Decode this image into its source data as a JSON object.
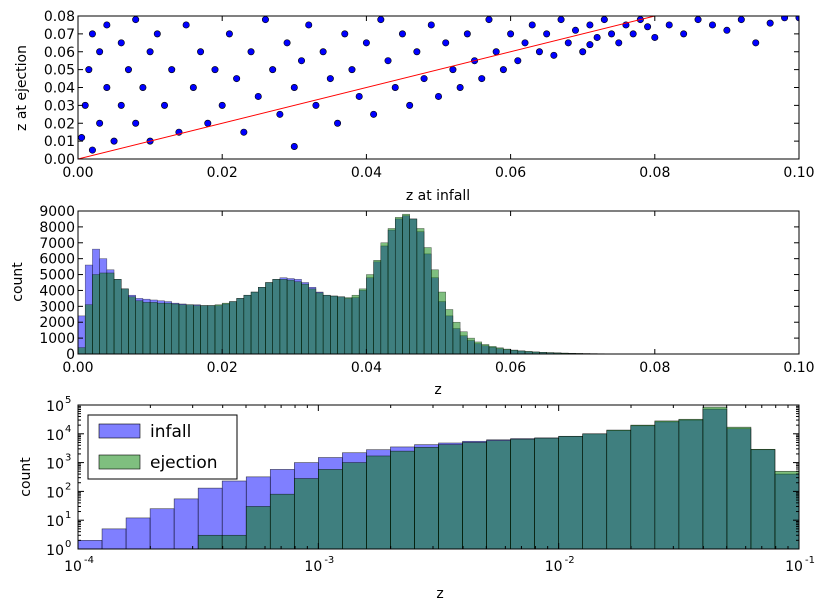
{
  "chart_data": [
    {
      "type": "scatter",
      "xlabel": "z at infall",
      "ylabel": "z at ejection",
      "xlim": [
        0,
        0.1
      ],
      "ylim": [
        0,
        0.08
      ],
      "xticks": [
        "0.00",
        "0.02",
        "0.04",
        "0.06",
        "0.08",
        "0.10"
      ],
      "yticks": [
        "0.00",
        "0.01",
        "0.02",
        "0.03",
        "0.04",
        "0.05",
        "0.06",
        "0.07",
        "0.08"
      ],
      "point_color": "#0000ff",
      "reference_line": {
        "x": [
          0,
          0.08
        ],
        "y": [
          0,
          0.08
        ],
        "color": "#ff0000"
      },
      "points": [
        [
          0.0005,
          0.012
        ],
        [
          0.001,
          0.03
        ],
        [
          0.0015,
          0.05
        ],
        [
          0.002,
          0.07
        ],
        [
          0.002,
          0.005
        ],
        [
          0.003,
          0.02
        ],
        [
          0.003,
          0.06
        ],
        [
          0.004,
          0.04
        ],
        [
          0.004,
          0.075
        ],
        [
          0.005,
          0.01
        ],
        [
          0.006,
          0.03
        ],
        [
          0.006,
          0.065
        ],
        [
          0.007,
          0.05
        ],
        [
          0.008,
          0.02
        ],
        [
          0.008,
          0.078
        ],
        [
          0.009,
          0.04
        ],
        [
          0.01,
          0.01
        ],
        [
          0.01,
          0.06
        ],
        [
          0.011,
          0.07
        ],
        [
          0.012,
          0.03
        ],
        [
          0.013,
          0.05
        ],
        [
          0.014,
          0.015
        ],
        [
          0.015,
          0.075
        ],
        [
          0.016,
          0.04
        ],
        [
          0.017,
          0.06
        ],
        [
          0.018,
          0.02
        ],
        [
          0.019,
          0.05
        ],
        [
          0.02,
          0.03
        ],
        [
          0.021,
          0.07
        ],
        [
          0.022,
          0.045
        ],
        [
          0.023,
          0.015
        ],
        [
          0.024,
          0.06
        ],
        [
          0.025,
          0.035
        ],
        [
          0.026,
          0.078
        ],
        [
          0.027,
          0.05
        ],
        [
          0.028,
          0.025
        ],
        [
          0.029,
          0.065
        ],
        [
          0.03,
          0.04
        ],
        [
          0.03,
          0.007
        ],
        [
          0.031,
          0.055
        ],
        [
          0.032,
          0.075
        ],
        [
          0.033,
          0.03
        ],
        [
          0.034,
          0.06
        ],
        [
          0.035,
          0.045
        ],
        [
          0.036,
          0.02
        ],
        [
          0.037,
          0.07
        ],
        [
          0.038,
          0.05
        ],
        [
          0.039,
          0.035
        ],
        [
          0.04,
          0.065
        ],
        [
          0.041,
          0.025
        ],
        [
          0.042,
          0.078
        ],
        [
          0.043,
          0.055
        ],
        [
          0.044,
          0.04
        ],
        [
          0.045,
          0.07
        ],
        [
          0.046,
          0.03
        ],
        [
          0.047,
          0.06
        ],
        [
          0.048,
          0.045
        ],
        [
          0.049,
          0.075
        ],
        [
          0.05,
          0.035
        ],
        [
          0.051,
          0.065
        ],
        [
          0.052,
          0.05
        ],
        [
          0.053,
          0.04
        ],
        [
          0.054,
          0.07
        ],
        [
          0.055,
          0.055
        ],
        [
          0.056,
          0.045
        ],
        [
          0.057,
          0.078
        ],
        [
          0.058,
          0.06
        ],
        [
          0.059,
          0.05
        ],
        [
          0.06,
          0.07
        ],
        [
          0.061,
          0.055
        ],
        [
          0.062,
          0.065
        ],
        [
          0.063,
          0.075
        ],
        [
          0.064,
          0.06
        ],
        [
          0.065,
          0.07
        ],
        [
          0.066,
          0.058
        ],
        [
          0.067,
          0.078
        ],
        [
          0.068,
          0.065
        ],
        [
          0.069,
          0.072
        ],
        [
          0.07,
          0.06
        ],
        [
          0.071,
          0.075
        ],
        [
          0.072,
          0.068
        ],
        [
          0.073,
          0.078
        ],
        [
          0.074,
          0.07
        ],
        [
          0.075,
          0.065
        ],
        [
          0.076,
          0.075
        ],
        [
          0.077,
          0.07
        ],
        [
          0.078,
          0.078
        ],
        [
          0.079,
          0.074
        ],
        [
          0.08,
          0.068
        ],
        [
          0.082,
          0.075
        ],
        [
          0.084,
          0.07
        ],
        [
          0.086,
          0.078
        ],
        [
          0.088,
          0.075
        ],
        [
          0.09,
          0.072
        ],
        [
          0.092,
          0.078
        ],
        [
          0.094,
          0.065
        ],
        [
          0.096,
          0.076
        ],
        [
          0.098,
          0.079
        ],
        [
          0.1,
          0.079
        ],
        [
          0.071,
          0.064
        ]
      ]
    },
    {
      "type": "bar",
      "xlabel": "z",
      "ylabel": "count",
      "xlim": [
        0,
        0.1
      ],
      "ylim": [
        0,
        9000
      ],
      "xticks": [
        "0.00",
        "0.02",
        "0.04",
        "0.06",
        "0.08",
        "0.10"
      ],
      "yticks": [
        "0",
        "1000",
        "2000",
        "3000",
        "4000",
        "5000",
        "6000",
        "7000",
        "8000",
        "9000"
      ],
      "bin_width": 0.001,
      "series": [
        {
          "color": "#0000ff",
          "values": [
            2400,
            5600,
            6600,
            6000,
            5300,
            4700,
            4100,
            3700,
            3500,
            3450,
            3400,
            3350,
            3300,
            3200,
            3150,
            3100,
            3100,
            3050,
            3050,
            3050,
            3150,
            3300,
            3500,
            3700,
            3900,
            4200,
            4500,
            4700,
            4800,
            4750,
            4700,
            4500,
            4200,
            3900,
            3700,
            3650,
            3600,
            3500,
            3550,
            4000,
            4800,
            5800,
            6800,
            7800,
            8500,
            8700,
            8500,
            7700,
            6300,
            4800,
            3300,
            2400,
            1600,
            1150,
            850,
            650,
            520,
            420,
            340,
            280,
            230,
            190,
            150,
            120,
            100,
            80,
            65,
            50,
            40,
            32,
            25,
            20,
            16,
            12,
            10,
            8,
            6,
            5,
            4,
            3,
            2,
            2,
            1,
            1,
            0,
            0,
            0,
            0,
            0,
            0,
            0,
            0,
            0,
            0,
            0,
            0,
            0,
            0,
            0,
            0
          ]
        },
        {
          "color": "#008000",
          "values": [
            400,
            3100,
            5000,
            5100,
            5100,
            4700,
            4100,
            3600,
            3350,
            3250,
            3250,
            3200,
            3200,
            3150,
            3100,
            3100,
            3050,
            3050,
            3050,
            3100,
            3200,
            3300,
            3500,
            3700,
            3900,
            4200,
            4500,
            4700,
            4700,
            4650,
            4550,
            4400,
            4100,
            3850,
            3700,
            3650,
            3600,
            3550,
            3700,
            4100,
            5000,
            5900,
            7000,
            7900,
            8600,
            8800,
            8500,
            7900,
            6700,
            5300,
            3900,
            2800,
            2000,
            1400,
            1000,
            760,
            600,
            480,
            390,
            310,
            250,
            200,
            165,
            135,
            110,
            90,
            75,
            60,
            48,
            38,
            30,
            24,
            19,
            15,
            12,
            9,
            7,
            6,
            5,
            4,
            3,
            2,
            1,
            1,
            0,
            0,
            0,
            0,
            0,
            0,
            0,
            0,
            0,
            0,
            0,
            0,
            0,
            0,
            0,
            0
          ]
        }
      ]
    },
    {
      "type": "bar",
      "xlabel": "z",
      "ylabel": "count",
      "xscale": "log",
      "yscale": "log",
      "xlim": [
        0.0001,
        0.1
      ],
      "ylim": [
        1,
        100000
      ],
      "xticks": [
        "10",
        "10",
        "10",
        "10"
      ],
      "xtick_exponents": [
        "-4",
        "-3",
        "-2",
        "-1"
      ],
      "yticks": [
        "10",
        "10",
        "10",
        "10",
        "10",
        "10"
      ],
      "ytick_exponents": [
        "0",
        "1",
        "2",
        "3",
        "4",
        "5"
      ],
      "legend": {
        "placement": "upper-left",
        "entries": [
          "infall",
          "ejection"
        ]
      },
      "bin_edges_log10": [
        -4.0,
        -3.9,
        -3.8,
        -3.7,
        -3.6,
        -3.5,
        -3.4,
        -3.3,
        -3.2,
        -3.1,
        -3.0,
        -2.9,
        -2.8,
        -2.7,
        -2.6,
        -2.5,
        -2.4,
        -2.3,
        -2.2,
        -2.1,
        -2.0,
        -1.9,
        -1.8,
        -1.7,
        -1.6,
        -1.5,
        -1.4,
        -1.3,
        -1.2,
        -1.1,
        -1.0
      ],
      "series": [
        {
          "name": "infall",
          "color": "#0000ff",
          "values": [
            2,
            5,
            12,
            25,
            55,
            130,
            230,
            320,
            580,
            1000,
            1500,
            2200,
            2800,
            3500,
            4200,
            4800,
            5500,
            6200,
            6800,
            7200,
            8200,
            10000,
            13000,
            19000,
            26000,
            30000,
            72000,
            15000,
            2800,
            400
          ]
        },
        {
          "name": "ejection",
          "color": "#008000",
          "values": [
            0,
            0,
            0,
            0,
            0,
            3,
            3,
            30,
            80,
            280,
            580,
            1000,
            1700,
            2500,
            3400,
            4200,
            5000,
            5800,
            6500,
            7100,
            8200,
            10000,
            13500,
            20000,
            28000,
            32000,
            85000,
            17000,
            2900,
            500
          ]
        }
      ]
    }
  ]
}
